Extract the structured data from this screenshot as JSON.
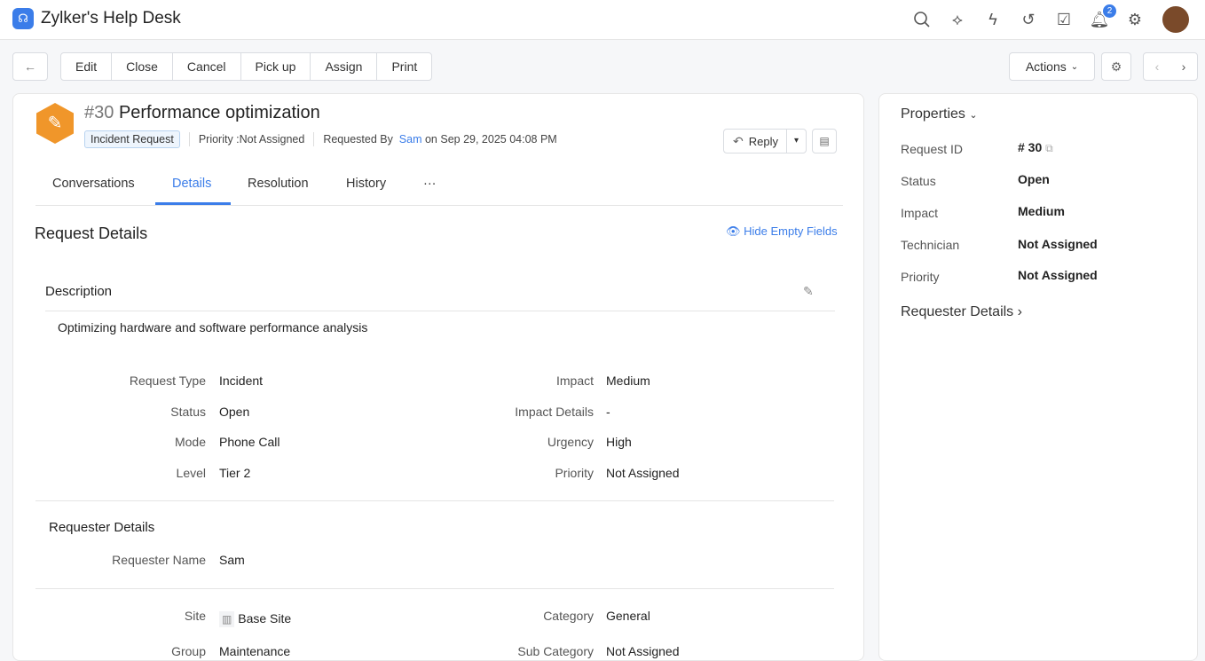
{
  "app": {
    "title": "Zylker's Help Desk",
    "notification_count": "2"
  },
  "toolbar": {
    "buttons": [
      "Edit",
      "Close",
      "Cancel",
      "Pick up",
      "Assign",
      "Print"
    ],
    "actions": "Actions"
  },
  "request": {
    "number": "#30",
    "title": "Performance optimization",
    "type_tag": "Incident Request",
    "priority": "Priority :Not Assigned",
    "requested_by_label": "Requested By",
    "requester": "Sam",
    "requested_on": "on Sep 29, 2025 04:08 PM",
    "reply": "Reply"
  },
  "tabs": [
    "Conversations",
    "Details",
    "Resolution",
    "History",
    "···"
  ],
  "details": {
    "heading": "Request Details",
    "hide_empty": "Hide Empty Fields",
    "description_label": "Description",
    "description": "Optimizing hardware and software performance analysis",
    "left_fields": [
      {
        "label": "Request Type",
        "value": "Incident"
      },
      {
        "label": "Status",
        "value": "Open"
      },
      {
        "label": "Mode",
        "value": "Phone Call"
      },
      {
        "label": "Level",
        "value": "Tier 2"
      }
    ],
    "right_fields": [
      {
        "label": "Impact",
        "value": "Medium"
      },
      {
        "label": "Impact Details",
        "value": "-"
      },
      {
        "label": "Urgency",
        "value": "High"
      },
      {
        "label": "Priority",
        "value": "Not Assigned"
      }
    ],
    "requester_heading": "Requester Details",
    "requester_name_label": "Requester Name",
    "requester_name": "Sam",
    "site_label": "Site",
    "site": "Base Site",
    "group_label": "Group",
    "group": "Maintenance",
    "category_label": "Category",
    "category": "General",
    "subcategory_label": "Sub Category",
    "subcategory": "Not Assigned"
  },
  "properties": {
    "heading": "Properties",
    "items": [
      {
        "label": "Request ID",
        "value": "# 30"
      },
      {
        "label": "Status",
        "value": "Open"
      },
      {
        "label": "Impact",
        "value": "Medium"
      },
      {
        "label": "Technician",
        "value": "Not Assigned"
      },
      {
        "label": "Priority",
        "value": "Not Assigned"
      }
    ],
    "requester_details": "Requester Details"
  },
  "colors": {
    "accent": "#3b7de9",
    "ticket_icon": "#f0962a"
  }
}
